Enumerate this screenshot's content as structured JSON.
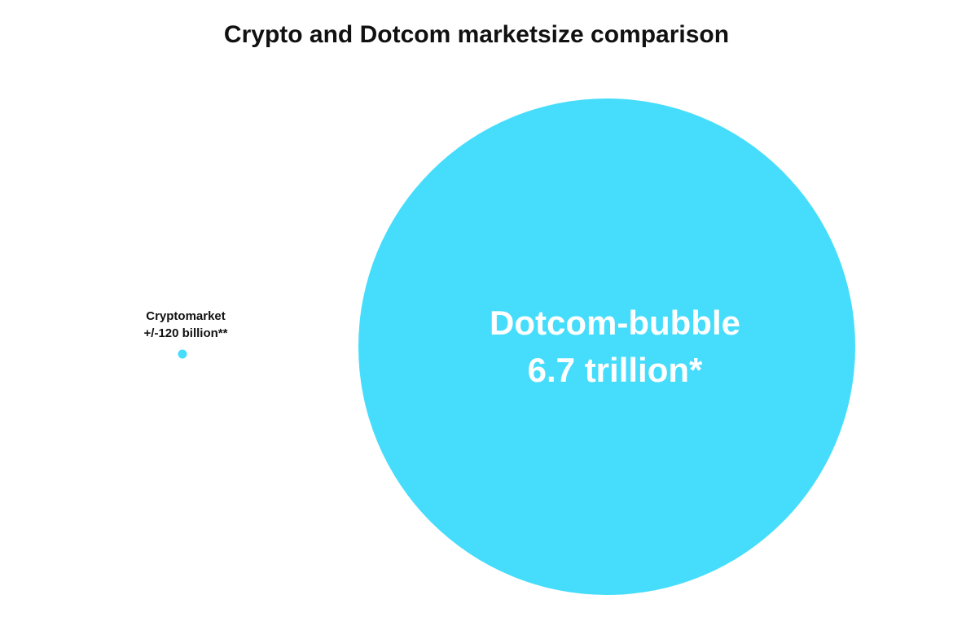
{
  "chart_data": {
    "type": "bubble",
    "title": "Crypto and Dotcom marketsize comparison",
    "categories": [
      "Cryptomarket",
      "Dotcom-bubble"
    ],
    "values": [
      120,
      6700
    ],
    "value_labels": [
      "+/-120 billion**",
      "6.7 trillion*"
    ],
    "color": "#45ddfb"
  }
}
